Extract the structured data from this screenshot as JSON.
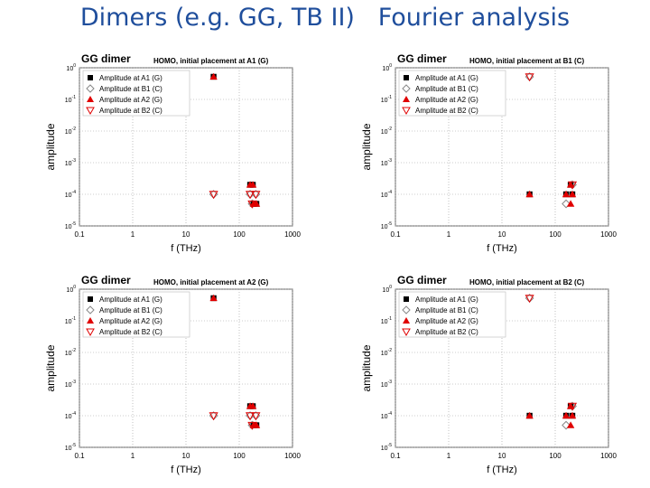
{
  "slide_title": "Dimers (e.g. GG, TB II)   Fourier analysis",
  "colors": {
    "title": "#1f4e9c",
    "red": "#e00000",
    "black": "#000000",
    "gray": "#888888"
  },
  "chart_data": [
    {
      "type": "scatter",
      "title": "GG dimer",
      "subtitle": "HOMO, initial placement at A1 (G)",
      "xlabel": "f (THz)",
      "ylabel": "amplitude",
      "xscale": "log",
      "yscale": "log",
      "xlim": [
        0.1,
        1000
      ],
      "ylim": [
        1e-05,
        1
      ],
      "xticks": [
        "0.1",
        "1",
        "10",
        "100",
        "1000"
      ],
      "yticks": [
        "10^0",
        "10^-1",
        "10^-2",
        "10^-3",
        "10^-4",
        "10^-5"
      ],
      "legend_position": "top-left",
      "series": [
        {
          "name": "Amplitude at A1 (G)",
          "marker": "square",
          "x": [
            33,
            160,
            180,
            185,
            210
          ],
          "y": [
            0.52,
            0.0002,
            0.0002,
            5e-05,
            5e-05
          ]
        },
        {
          "name": "Amplitude at B1 (C)",
          "marker": "diamond-open",
          "x": [
            33,
            160,
            205,
            175
          ],
          "y": [
            0.0001,
            0.0001,
            0.0001,
            5e-05
          ]
        },
        {
          "name": "Amplitude at A2 (G)",
          "marker": "triangle-up",
          "x": [
            33,
            160,
            180,
            185,
            210
          ],
          "y": [
            0.52,
            0.0002,
            0.0002,
            5e-05,
            5e-05
          ]
        },
        {
          "name": "Amplitude at B2 (C)",
          "marker": "triangle-down-open",
          "x": [
            33,
            160,
            205,
            175
          ],
          "y": [
            0.0001,
            0.0001,
            0.0001,
            5e-05
          ]
        }
      ]
    },
    {
      "type": "scatter",
      "title": "GG dimer",
      "subtitle": "HOMO, initial placement at B1 (C)",
      "xlabel": "f (THz)",
      "ylabel": "amplitude",
      "xscale": "log",
      "yscale": "log",
      "xlim": [
        0.1,
        1000
      ],
      "ylim": [
        1e-05,
        1
      ],
      "xticks": [
        "0.1",
        "1",
        "10",
        "100",
        "1000"
      ],
      "yticks": [
        "10^0",
        "10^-1",
        "10^-2",
        "10^-3",
        "10^-4",
        "10^-5"
      ],
      "legend_position": "top-left",
      "series": [
        {
          "name": "Amplitude at A1 (G)",
          "marker": "square",
          "x": [
            33,
            160,
            195,
            210
          ],
          "y": [
            0.0001,
            0.0001,
            0.0002,
            0.0001
          ]
        },
        {
          "name": "Amplitude at B1 (C)",
          "marker": "diamond-open",
          "x": [
            33,
            160,
            210
          ],
          "y": [
            0.52,
            5e-05,
            0.0002
          ]
        },
        {
          "name": "Amplitude at A2 (G)",
          "marker": "triangle-up",
          "x": [
            33,
            160,
            195,
            210,
            195
          ],
          "y": [
            0.0001,
            0.0001,
            0.0002,
            0.0001,
            5e-05
          ]
        },
        {
          "name": "Amplitude at B2 (C)",
          "marker": "triangle-down-open",
          "x": [
            33,
            210
          ],
          "y": [
            0.52,
            0.0002
          ]
        }
      ]
    },
    {
      "type": "scatter",
      "title": "GG dimer",
      "subtitle": "HOMO, initial placement at A2 (G)",
      "xlabel": "f (THz)",
      "ylabel": "amplitude",
      "xscale": "log",
      "yscale": "log",
      "xlim": [
        0.1,
        1000
      ],
      "ylim": [
        1e-05,
        1
      ],
      "xticks": [
        "0.1",
        "1",
        "10",
        "100",
        "1000"
      ],
      "yticks": [
        "10^0",
        "10^-1",
        "10^-2",
        "10^-3",
        "10^-4",
        "10^-5"
      ],
      "legend_position": "top-left",
      "series": [
        {
          "name": "Amplitude at A1 (G)",
          "marker": "square",
          "x": [
            33,
            160,
            180,
            185,
            210
          ],
          "y": [
            0.52,
            0.0002,
            0.0002,
            5e-05,
            5e-05
          ]
        },
        {
          "name": "Amplitude at B1 (C)",
          "marker": "diamond-open",
          "x": [
            33,
            160,
            205,
            175
          ],
          "y": [
            0.0001,
            0.0001,
            0.0001,
            5e-05
          ]
        },
        {
          "name": "Amplitude at A2 (G)",
          "marker": "triangle-up",
          "x": [
            33,
            160,
            180,
            185,
            210
          ],
          "y": [
            0.52,
            0.0002,
            0.0002,
            5e-05,
            5e-05
          ]
        },
        {
          "name": "Amplitude at B2 (C)",
          "marker": "triangle-down-open",
          "x": [
            33,
            160,
            205,
            175
          ],
          "y": [
            0.0001,
            0.0001,
            0.0001,
            5e-05
          ]
        }
      ]
    },
    {
      "type": "scatter",
      "title": "GG dimer",
      "subtitle": "HOMO, initial placement at B2 (C)",
      "xlabel": "f (THz)",
      "ylabel": "amplitude",
      "xscale": "log",
      "yscale": "log",
      "xlim": [
        0.1,
        1000
      ],
      "ylim": [
        1e-05,
        1
      ],
      "xticks": [
        "0.1",
        "1",
        "10",
        "100",
        "1000"
      ],
      "yticks": [
        "10^0",
        "10^-1",
        "10^-2",
        "10^-3",
        "10^-4",
        "10^-5"
      ],
      "legend_position": "top-left",
      "series": [
        {
          "name": "Amplitude at A1 (G)",
          "marker": "square",
          "x": [
            33,
            160,
            195,
            210
          ],
          "y": [
            0.0001,
            0.0001,
            0.0002,
            0.0001
          ]
        },
        {
          "name": "Amplitude at B1 (C)",
          "marker": "diamond-open",
          "x": [
            33,
            160,
            210
          ],
          "y": [
            0.52,
            5e-05,
            0.0002
          ]
        },
        {
          "name": "Amplitude at A2 (G)",
          "marker": "triangle-up",
          "x": [
            33,
            160,
            195,
            210,
            195
          ],
          "y": [
            0.0001,
            0.0001,
            0.0002,
            0.0001,
            5e-05
          ]
        },
        {
          "name": "Amplitude at B2 (C)",
          "marker": "triangle-down-open",
          "x": [
            33,
            210
          ],
          "y": [
            0.52,
            0.0002
          ]
        }
      ]
    }
  ]
}
